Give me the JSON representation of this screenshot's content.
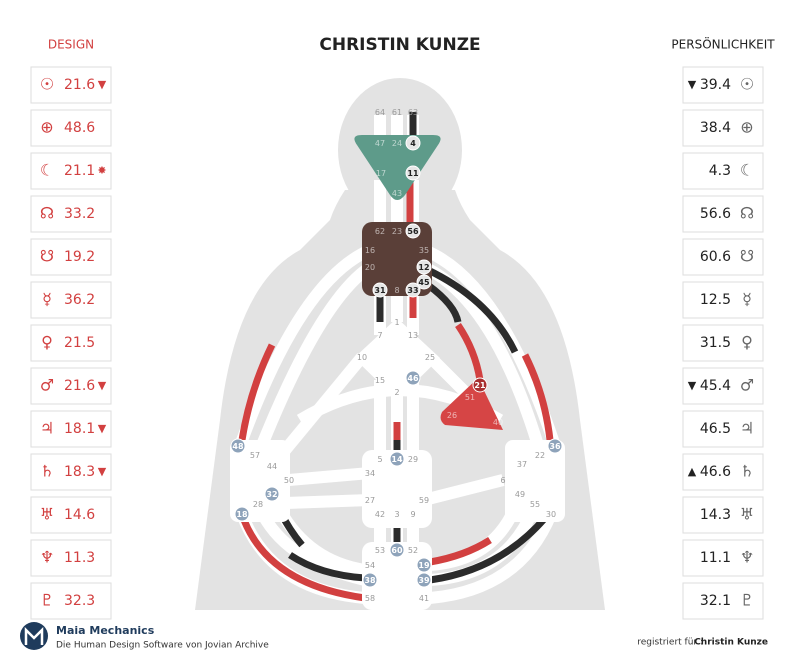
{
  "header": {
    "title": "CHRISTIN KUNZE"
  },
  "design": {
    "label": "DESIGN",
    "rows": [
      {
        "symbol": "☉",
        "value": "21.6",
        "marker": "▼"
      },
      {
        "symbol": "⊕",
        "value": "48.6"
      },
      {
        "symbol": "☾",
        "value": "21.1",
        "marker": "✸"
      },
      {
        "symbol": "☊",
        "value": "33.2"
      },
      {
        "symbol": "☋",
        "value": "19.2"
      },
      {
        "symbol": "☿",
        "value": "36.2"
      },
      {
        "symbol": "♀",
        "value": "21.5"
      },
      {
        "symbol": "♂",
        "value": "21.6",
        "marker": "▼"
      },
      {
        "symbol": "♃",
        "value": "18.1",
        "marker": "▼"
      },
      {
        "symbol": "♄",
        "value": "18.3",
        "marker": "▼"
      },
      {
        "symbol": "♅",
        "value": "14.6"
      },
      {
        "symbol": "♆",
        "value": "11.3"
      },
      {
        "symbol": "♇",
        "value": "32.3"
      }
    ]
  },
  "personality": {
    "label": "PERSÖNLICHKEIT",
    "rows": [
      {
        "symbol": "☉",
        "value": "39.4",
        "marker": "▼"
      },
      {
        "symbol": "⊕",
        "value": "38.4"
      },
      {
        "symbol": "☾",
        "value": "4.3"
      },
      {
        "symbol": "☊",
        "value": "56.6"
      },
      {
        "symbol": "☋",
        "value": "60.6"
      },
      {
        "symbol": "☿",
        "value": "12.5"
      },
      {
        "symbol": "♀",
        "value": "31.5"
      },
      {
        "symbol": "♂",
        "value": "45.4",
        "marker": "▼"
      },
      {
        "symbol": "♃",
        "value": "46.5"
      },
      {
        "symbol": "♄",
        "value": "46.6",
        "marker": "▲"
      },
      {
        "symbol": "♅",
        "value": "14.3"
      },
      {
        "symbol": "♆",
        "value": "11.1"
      },
      {
        "symbol": "♇",
        "value": "32.1"
      }
    ]
  },
  "gates": [
    {
      "label": "64"
    },
    {
      "label": "61"
    },
    {
      "label": "63"
    },
    {
      "label": "47"
    },
    {
      "label": "24"
    },
    {
      "label": "4",
      "active": "light"
    },
    {
      "label": "17"
    },
    {
      "label": "11",
      "active": "light"
    },
    {
      "label": "43"
    },
    {
      "label": "62"
    },
    {
      "label": "23"
    },
    {
      "label": "56",
      "active": "light"
    },
    {
      "label": "16"
    },
    {
      "label": "35"
    },
    {
      "label": "20"
    },
    {
      "label": "12",
      "active": "light"
    },
    {
      "label": "45",
      "active": "light"
    },
    {
      "label": "31",
      "active": "light"
    },
    {
      "label": "8"
    },
    {
      "label": "33",
      "active": "light"
    },
    {
      "label": "1"
    },
    {
      "label": "7"
    },
    {
      "label": "13"
    },
    {
      "label": "10"
    },
    {
      "label": "25"
    },
    {
      "label": "15"
    },
    {
      "label": "46",
      "active": "blue"
    },
    {
      "label": "2"
    },
    {
      "label": "21",
      "active": "red"
    },
    {
      "label": "51"
    },
    {
      "label": "26"
    },
    {
      "label": "40"
    },
    {
      "label": "48",
      "active": "blue"
    },
    {
      "label": "57"
    },
    {
      "label": "44"
    },
    {
      "label": "50"
    },
    {
      "label": "32",
      "active": "blue"
    },
    {
      "label": "28"
    },
    {
      "label": "18",
      "active": "blue"
    },
    {
      "label": "5"
    },
    {
      "label": "14",
      "active": "blue"
    },
    {
      "label": "29"
    },
    {
      "label": "34"
    },
    {
      "label": "27"
    },
    {
      "label": "59"
    },
    {
      "label": "42"
    },
    {
      "label": "3"
    },
    {
      "label": "9"
    },
    {
      "label": "53"
    },
    {
      "label": "60",
      "active": "blue"
    },
    {
      "label": "52"
    },
    {
      "label": "54"
    },
    {
      "label": "19",
      "active": "blue"
    },
    {
      "label": "38",
      "active": "blue"
    },
    {
      "label": "39",
      "active": "blue"
    },
    {
      "label": "58"
    },
    {
      "label": "41"
    },
    {
      "label": "36",
      "active": "blue"
    },
    {
      "label": "22"
    },
    {
      "label": "37"
    },
    {
      "label": "6"
    },
    {
      "label": "49"
    },
    {
      "label": "55"
    },
    {
      "label": "30"
    }
  ],
  "footer": {
    "brand": "Maia Mechanics",
    "tagline": "Die Human Design Software von Jovian Archive",
    "registered_label": "registriert für :",
    "registered_name": "Christin Kunze"
  }
}
